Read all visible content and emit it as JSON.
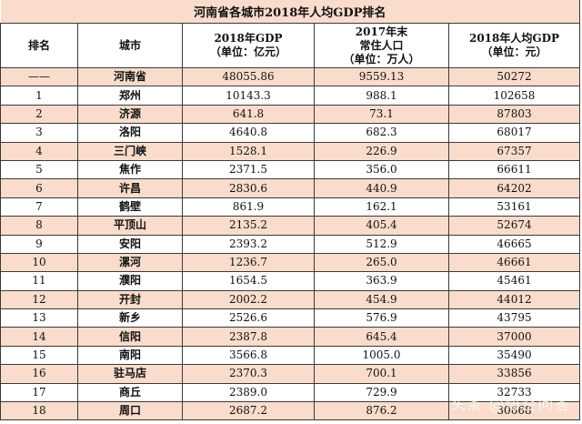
{
  "title": "河南省各城市2018年人均GDP排名",
  "columns": {
    "rank": "排名",
    "city": "城市",
    "gdp_line1": "2018年GDP",
    "gdp_line2": "（单位：亿元）",
    "pop_line1": "2017年末",
    "pop_line2": "常住人口",
    "pop_line3": "（单位：万人）",
    "pcgdp_line1": "2018年人均GDP",
    "pcgdp_line2": "（单位：元）"
  },
  "rows": [
    {
      "rank": "——",
      "city": "河南省",
      "gdp": "48055.86",
      "pop": "9559.13",
      "pcgdp": "50272"
    },
    {
      "rank": "1",
      "city": "郑州",
      "gdp": "10143.3",
      "pop": "988.1",
      "pcgdp": "102658"
    },
    {
      "rank": "2",
      "city": "济源",
      "gdp": "641.8",
      "pop": "73.1",
      "pcgdp": "87803"
    },
    {
      "rank": "3",
      "city": "洛阳",
      "gdp": "4640.8",
      "pop": "682.3",
      "pcgdp": "68017"
    },
    {
      "rank": "4",
      "city": "三门峡",
      "gdp": "1528.1",
      "pop": "226.9",
      "pcgdp": "67357"
    },
    {
      "rank": "5",
      "city": "焦作",
      "gdp": "2371.5",
      "pop": "356.0",
      "pcgdp": "66611"
    },
    {
      "rank": "6",
      "city": "许昌",
      "gdp": "2830.6",
      "pop": "440.9",
      "pcgdp": "64202"
    },
    {
      "rank": "7",
      "city": "鹤壁",
      "gdp": "861.9",
      "pop": "162.1",
      "pcgdp": "53161"
    },
    {
      "rank": "8",
      "city": "平顶山",
      "gdp": "2135.2",
      "pop": "405.4",
      "pcgdp": "52674"
    },
    {
      "rank": "9",
      "city": "安阳",
      "gdp": "2393.2",
      "pop": "512.9",
      "pcgdp": "46665"
    },
    {
      "rank": "10",
      "city": "漯河",
      "gdp": "1236.7",
      "pop": "265.0",
      "pcgdp": "46661"
    },
    {
      "rank": "11",
      "city": "濮阳",
      "gdp": "1654.5",
      "pop": "363.9",
      "pcgdp": "45461"
    },
    {
      "rank": "12",
      "city": "开封",
      "gdp": "2002.2",
      "pop": "454.9",
      "pcgdp": "44012"
    },
    {
      "rank": "13",
      "city": "新乡",
      "gdp": "2526.6",
      "pop": "576.9",
      "pcgdp": "43795"
    },
    {
      "rank": "14",
      "city": "信阳",
      "gdp": "2387.8",
      "pop": "645.4",
      "pcgdp": "37000"
    },
    {
      "rank": "15",
      "city": "南阳",
      "gdp": "3566.8",
      "pop": "1005.0",
      "pcgdp": "35490"
    },
    {
      "rank": "16",
      "city": "驻马店",
      "gdp": "2370.3",
      "pop": "700.1",
      "pcgdp": "33856"
    },
    {
      "rank": "17",
      "city": "商丘",
      "gdp": "2389.0",
      "pop": "729.9",
      "pcgdp": "32733"
    },
    {
      "rank": "18",
      "city": "周口",
      "gdp": "2687.2",
      "pop": "876.2",
      "pcgdp": "30668"
    }
  ],
  "watermark": "头条 @悟空问答"
}
